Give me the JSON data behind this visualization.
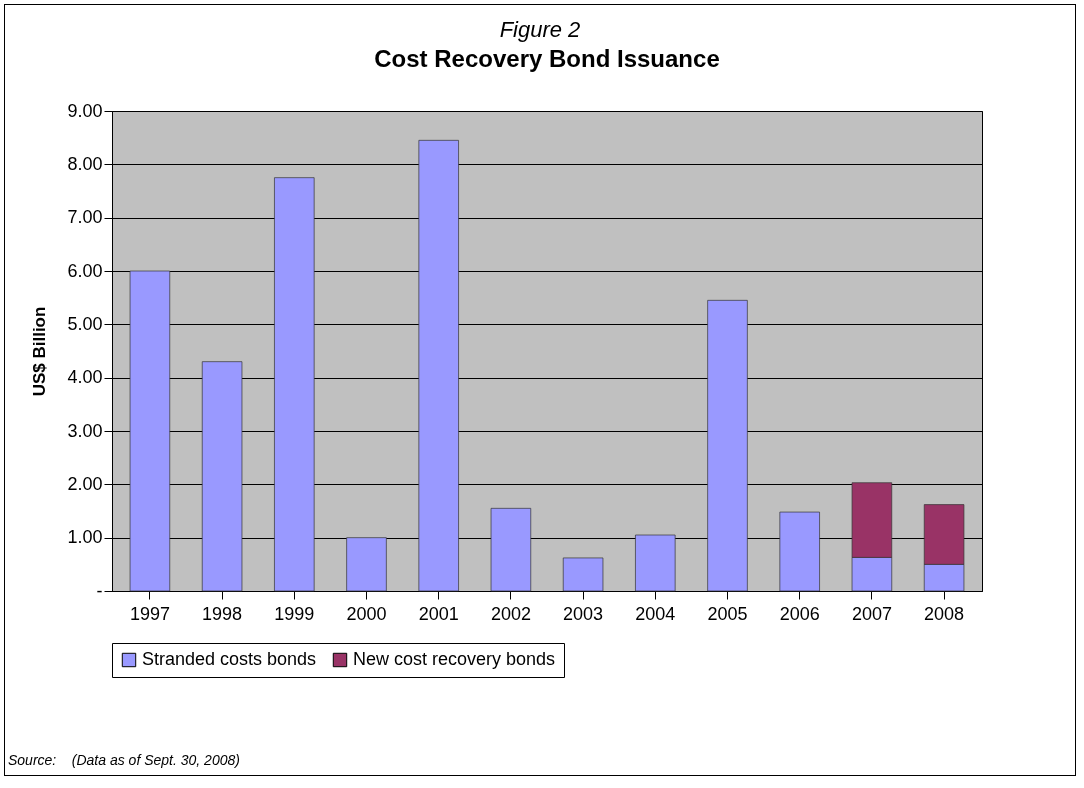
{
  "chart_data": {
    "type": "bar",
    "title": "Cost Recovery Bond Issuance",
    "subtitle": "Figure 2",
    "ylabel": "US$ Billion",
    "categories": [
      "1997",
      "1998",
      "1999",
      "2000",
      "2001",
      "2002",
      "2003",
      "2004",
      "2005",
      "2006",
      "2007",
      "2008"
    ],
    "series": [
      {
        "name": "Stranded costs bonds",
        "color": "#9999ff",
        "values": [
          6.0,
          4.3,
          7.75,
          1.0,
          8.45,
          1.55,
          0.62,
          1.05,
          5.45,
          1.48,
          0.63,
          0.5
        ]
      },
      {
        "name": "New cost recovery bonds",
        "color": "#993366",
        "values": [
          null,
          null,
          null,
          null,
          null,
          null,
          null,
          null,
          null,
          null,
          1.4,
          1.12
        ]
      }
    ],
    "stacked": true,
    "ylim": [
      0,
      9
    ],
    "yticks": [
      {
        "value": 0,
        "label": "-"
      },
      {
        "value": 1,
        "label": "1.00"
      },
      {
        "value": 2,
        "label": "2.00"
      },
      {
        "value": 3,
        "label": "3.00"
      },
      {
        "value": 4,
        "label": "4.00"
      },
      {
        "value": 5,
        "label": "5.00"
      },
      {
        "value": 6,
        "label": "6.00"
      },
      {
        "value": 7,
        "label": "7.00"
      },
      {
        "value": 8,
        "label": "8.00"
      },
      {
        "value": 9,
        "label": "9.00"
      }
    ],
    "grid": "y",
    "legend": "bottom",
    "annotations": [
      "Source:    (Data as of Sept. 30, 2008)"
    ]
  }
}
